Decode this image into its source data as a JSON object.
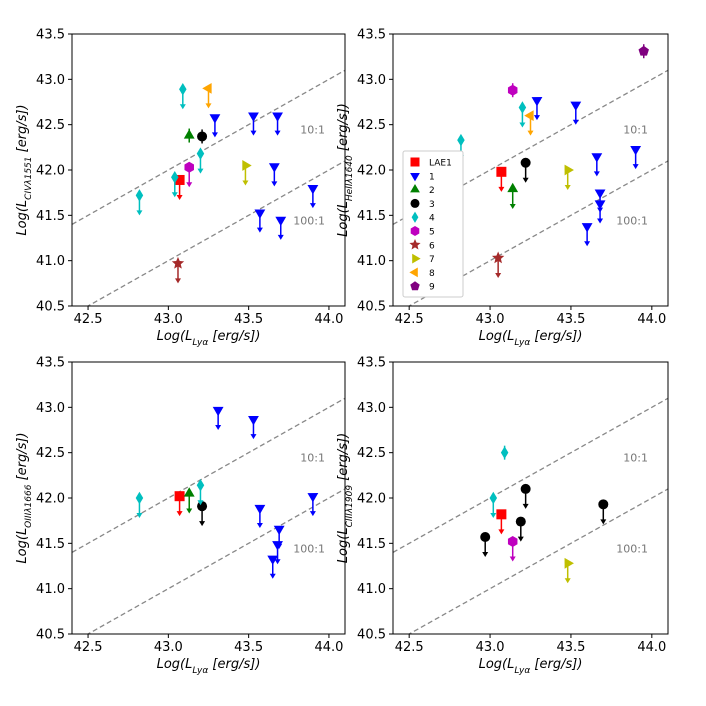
{
  "chart_data": [
    {
      "type": "scatter",
      "panel": "top-left",
      "xlabel": "Log(L_{Lyα} [erg/s])",
      "ylabel": "Log(L_{CIVλ1551} [erg/s])",
      "xlim": [
        42.4,
        44.1
      ],
      "ylim": [
        40.5,
        43.5
      ],
      "xticks": [
        "42.5",
        "43.0",
        "43.5",
        "44.0"
      ],
      "yticks": [
        "40.5",
        "41.0",
        "41.5",
        "42.0",
        "42.5",
        "43.0",
        "43.5"
      ],
      "ratio_labels": [
        "10:1",
        "100:1"
      ],
      "legend": false,
      "points": [
        {
          "series": "LAE1",
          "x": 43.07,
          "y": 41.89,
          "upper_limit": true
        },
        {
          "series": "1",
          "x": 43.29,
          "y": 42.58,
          "upper_limit": true
        },
        {
          "series": "1",
          "x": 43.53,
          "y": 42.6,
          "upper_limit": true
        },
        {
          "series": "1",
          "x": 43.68,
          "y": 42.6,
          "upper_limit": true
        },
        {
          "series": "1",
          "x": 43.66,
          "y": 42.04,
          "upper_limit": true
        },
        {
          "series": "1",
          "x": 43.57,
          "y": 41.53,
          "upper_limit": true
        },
        {
          "series": "1",
          "x": 43.7,
          "y": 41.45,
          "upper_limit": true
        },
        {
          "series": "1",
          "x": 43.9,
          "y": 41.8,
          "upper_limit": true
        },
        {
          "series": "2",
          "x": 43.13,
          "y": 42.38,
          "upper_limit": false
        },
        {
          "series": "3",
          "x": 43.21,
          "y": 42.37,
          "upper_limit": false
        },
        {
          "series": "4",
          "x": 43.09,
          "y": 42.89,
          "upper_limit": true
        },
        {
          "series": "4",
          "x": 43.2,
          "y": 42.18,
          "upper_limit": true
        },
        {
          "series": "4",
          "x": 43.04,
          "y": 41.92,
          "upper_limit": true
        },
        {
          "series": "4",
          "x": 42.82,
          "y": 41.72,
          "upper_limit": true
        },
        {
          "series": "5",
          "x": 43.13,
          "y": 42.03,
          "upper_limit": true
        },
        {
          "series": "6",
          "x": 43.06,
          "y": 40.97,
          "upper_limit": true
        },
        {
          "series": "7",
          "x": 43.48,
          "y": 42.05,
          "upper_limit": true
        },
        {
          "series": "8",
          "x": 43.25,
          "y": 42.9,
          "upper_limit": true
        }
      ]
    },
    {
      "type": "scatter",
      "panel": "top-right",
      "xlabel": "Log(L_{Lyα} [erg/s])",
      "ylabel": "Log(L_{HeIIλ1640} [erg/s])",
      "xlim": [
        42.4,
        44.1
      ],
      "ylim": [
        40.5,
        43.5
      ],
      "xticks": [
        "42.5",
        "43.0",
        "43.5",
        "44.0"
      ],
      "yticks": [
        "40.5",
        "41.0",
        "41.5",
        "42.0",
        "42.5",
        "43.0",
        "43.5"
      ],
      "ratio_labels": [
        "10:1",
        "100:1"
      ],
      "legend": true,
      "points": [
        {
          "series": "LAE1",
          "x": 43.07,
          "y": 41.98,
          "upper_limit": true
        },
        {
          "series": "1",
          "x": 43.29,
          "y": 42.77,
          "upper_limit": true
        },
        {
          "series": "1",
          "x": 43.53,
          "y": 42.72,
          "upper_limit": true
        },
        {
          "series": "1",
          "x": 43.66,
          "y": 42.15,
          "upper_limit": true
        },
        {
          "series": "1",
          "x": 43.68,
          "y": 41.75,
          "upper_limit": true
        },
        {
          "series": "1",
          "x": 43.68,
          "y": 41.63,
          "upper_limit": true
        },
        {
          "series": "1",
          "x": 43.6,
          "y": 41.38,
          "upper_limit": true
        },
        {
          "series": "1",
          "x": 43.9,
          "y": 42.23,
          "upper_limit": true
        },
        {
          "series": "2",
          "x": 43.14,
          "y": 41.79,
          "upper_limit": true
        },
        {
          "series": "3",
          "x": 43.22,
          "y": 42.08,
          "upper_limit": true
        },
        {
          "series": "4",
          "x": 42.82,
          "y": 42.33,
          "upper_limit": true
        },
        {
          "series": "4",
          "x": 43.2,
          "y": 42.69,
          "upper_limit": true
        },
        {
          "series": "5",
          "x": 43.14,
          "y": 42.88,
          "upper_limit": false
        },
        {
          "series": "6",
          "x": 43.05,
          "y": 41.03,
          "upper_limit": true
        },
        {
          "series": "7",
          "x": 43.48,
          "y": 42.0,
          "upper_limit": true
        },
        {
          "series": "8",
          "x": 43.25,
          "y": 42.6,
          "upper_limit": true
        },
        {
          "series": "9",
          "x": 43.95,
          "y": 43.31,
          "upper_limit": false
        }
      ]
    },
    {
      "type": "scatter",
      "panel": "bottom-left",
      "xlabel": "Log(L_{Lyα} [erg/s])",
      "ylabel": "Log(L_{OIIIλ1666} [erg/s])",
      "xlim": [
        42.4,
        44.1
      ],
      "ylim": [
        40.5,
        43.5
      ],
      "xticks": [
        "42.5",
        "43.0",
        "43.5",
        "44.0"
      ],
      "yticks": [
        "40.5",
        "41.0",
        "41.5",
        "42.0",
        "42.5",
        "43.0",
        "43.5"
      ],
      "ratio_labels": [
        "10:1",
        "100:1"
      ],
      "legend": false,
      "points": [
        {
          "series": "LAE1",
          "x": 43.07,
          "y": 42.02,
          "upper_limit": true
        },
        {
          "series": "1",
          "x": 43.31,
          "y": 42.97,
          "upper_limit": true
        },
        {
          "series": "1",
          "x": 43.53,
          "y": 42.87,
          "upper_limit": true
        },
        {
          "series": "1",
          "x": 43.57,
          "y": 41.89,
          "upper_limit": true
        },
        {
          "series": "1",
          "x": 43.69,
          "y": 41.66,
          "upper_limit": true
        },
        {
          "series": "1",
          "x": 43.68,
          "y": 41.49,
          "upper_limit": true
        },
        {
          "series": "1",
          "x": 43.65,
          "y": 41.33,
          "upper_limit": true
        },
        {
          "series": "1",
          "x": 43.9,
          "y": 42.02,
          "upper_limit": true
        },
        {
          "series": "2",
          "x": 43.13,
          "y": 42.05,
          "upper_limit": true
        },
        {
          "series": "3",
          "x": 43.21,
          "y": 41.91,
          "upper_limit": true
        },
        {
          "series": "4",
          "x": 42.82,
          "y": 42.0,
          "upper_limit": true
        },
        {
          "series": "4",
          "x": 43.2,
          "y": 42.14,
          "upper_limit": true
        }
      ]
    },
    {
      "type": "scatter",
      "panel": "bottom-right",
      "xlabel": "Log(L_{Lyα} [erg/s])",
      "ylabel": "Log(L_{CIIIλ1909} [erg/s])",
      "xlim": [
        42.4,
        44.1
      ],
      "ylim": [
        40.5,
        43.5
      ],
      "xticks": [
        "42.5",
        "43.0",
        "43.5",
        "44.0"
      ],
      "yticks": [
        "40.5",
        "41.0",
        "41.5",
        "42.0",
        "42.5",
        "43.0",
        "43.5"
      ],
      "ratio_labels": [
        "10:1",
        "100:1"
      ],
      "legend": false,
      "points": [
        {
          "series": "LAE1",
          "x": 43.07,
          "y": 41.82,
          "upper_limit": true
        },
        {
          "series": "3",
          "x": 42.97,
          "y": 41.57,
          "upper_limit": true
        },
        {
          "series": "3",
          "x": 43.19,
          "y": 41.74,
          "upper_limit": true
        },
        {
          "series": "3",
          "x": 43.22,
          "y": 42.1,
          "upper_limit": true
        },
        {
          "series": "3",
          "x": 43.7,
          "y": 41.93,
          "upper_limit": true
        },
        {
          "series": "4",
          "x": 43.02,
          "y": 42.0,
          "upper_limit": true
        },
        {
          "series": "4",
          "x": 43.09,
          "y": 42.5,
          "upper_limit": false
        },
        {
          "series": "5",
          "x": 43.14,
          "y": 41.52,
          "upper_limit": true
        },
        {
          "series": "7",
          "x": 43.48,
          "y": 41.28,
          "upper_limit": true
        }
      ]
    }
  ],
  "legend_entries": [
    {
      "label": "LAE1",
      "marker": "square",
      "color": "#ff0000"
    },
    {
      "label": "1",
      "marker": "triangle-down",
      "color": "#0000ff"
    },
    {
      "label": "2",
      "marker": "triangle-up",
      "color": "#008000"
    },
    {
      "label": "3",
      "marker": "circle",
      "color": "#000000"
    },
    {
      "label": "4",
      "marker": "diamond",
      "color": "#00bfbf"
    },
    {
      "label": "5",
      "marker": "hexagon",
      "color": "#bf00bf"
    },
    {
      "label": "6",
      "marker": "star",
      "color": "#a52a2a"
    },
    {
      "label": "7",
      "marker": "triangle-right",
      "color": "#bfbf00"
    },
    {
      "label": "8",
      "marker": "triangle-left",
      "color": "#ffa500"
    },
    {
      "label": "9",
      "marker": "pentagon",
      "color": "#800080"
    }
  ],
  "line_color": "#888888"
}
